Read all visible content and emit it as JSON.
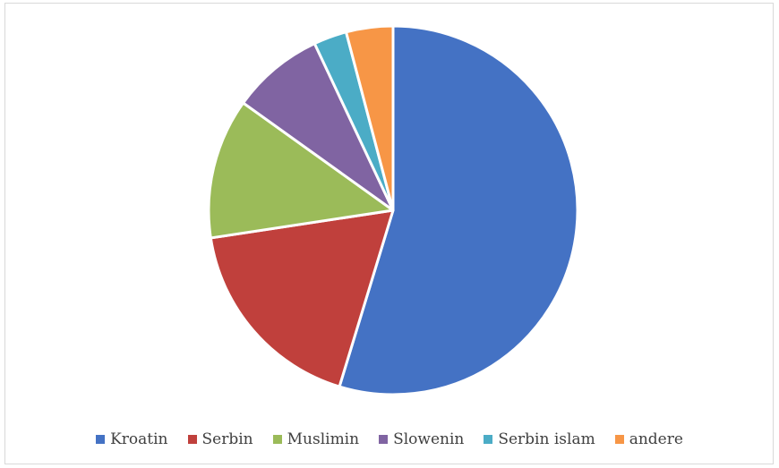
{
  "chart_data": {
    "type": "pie",
    "title": "",
    "categories": [
      "Kroatin",
      "Serbin",
      "Muslimin",
      "Slowenin",
      "Serbin islam",
      "andere"
    ],
    "values": [
      54.7,
      17.9,
      12.3,
      8.1,
      2.9,
      4.1
    ],
    "colors": [
      "#4472C4",
      "#C0403C",
      "#9BBB59",
      "#8064A2",
      "#4BACC6",
      "#F79646"
    ],
    "start_angle_deg": 0,
    "direction": "clockwise",
    "legend_position": "bottom"
  }
}
